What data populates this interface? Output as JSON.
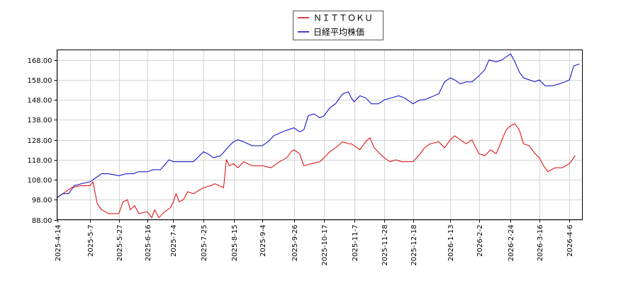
{
  "chart_data": {
    "type": "line",
    "title": "",
    "xlabel": "",
    "ylabel": "",
    "ylim": [
      88,
      173
    ],
    "y_ticks": [
      "88.00",
      "98.00",
      "108.00",
      "118.00",
      "128.00",
      "138.00",
      "148.00",
      "158.00",
      "168.00"
    ],
    "x_ticks": [
      "2025-4-14",
      "2025-5-7",
      "2025-5-27",
      "2025-6-16",
      "2025-7-4",
      "2025-7-25",
      "2025-8-15",
      "2025-9-4",
      "2025-9-26",
      "2025-10-17",
      "2025-11-7",
      "2025-11-28",
      "2025-12-18",
      "2026-1-13",
      "2026-2-2",
      "2026-2-24",
      "2026-3-16",
      "2026-4-6"
    ],
    "grid": true,
    "legend_position": "top-center",
    "series": [
      {
        "name": "ＮＩＴＴＯＫＵ",
        "color": "#dd0000",
        "points": [
          [
            "2025-4-14",
            99
          ],
          [
            "2025-4-18",
            101
          ],
          [
            "2025-4-24",
            104
          ],
          [
            "2025-4-30",
            105
          ],
          [
            "2025-5-7",
            105
          ],
          [
            "2025-5-9",
            107
          ],
          [
            "2025-5-12",
            96
          ],
          [
            "2025-5-15",
            93
          ],
          [
            "2025-5-20",
            91
          ],
          [
            "2025-5-27",
            91
          ],
          [
            "2025-5-30",
            97
          ],
          [
            "2025-6-2",
            98
          ],
          [
            "2025-6-4",
            93
          ],
          [
            "2025-6-7",
            95
          ],
          [
            "2025-6-10",
            91
          ],
          [
            "2025-6-16",
            92
          ],
          [
            "2025-6-19",
            89
          ],
          [
            "2025-6-21",
            93
          ],
          [
            "2025-6-24",
            89
          ],
          [
            "2025-6-28",
            92
          ],
          [
            "2025-7-2",
            94
          ],
          [
            "2025-7-4",
            97
          ],
          [
            "2025-7-6",
            101
          ],
          [
            "2025-7-8",
            97
          ],
          [
            "2025-7-11",
            98
          ],
          [
            "2025-7-14",
            102
          ],
          [
            "2025-7-18",
            101
          ],
          [
            "2025-7-25",
            104
          ],
          [
            "2025-7-30",
            105
          ],
          [
            "2025-8-2",
            106
          ],
          [
            "2025-8-8",
            104
          ],
          [
            "2025-8-10",
            118
          ],
          [
            "2025-8-12",
            115
          ],
          [
            "2025-8-15",
            116
          ],
          [
            "2025-8-18",
            114
          ],
          [
            "2025-8-22",
            117
          ],
          [
            "2025-8-28",
            115
          ],
          [
            "2025-9-4",
            115
          ],
          [
            "2025-9-10",
            114
          ],
          [
            "2025-9-16",
            117
          ],
          [
            "2025-9-21",
            119
          ],
          [
            "2025-9-24",
            122
          ],
          [
            "2025-9-26",
            123
          ],
          [
            "2025-9-30",
            121
          ],
          [
            "2025-10-3",
            115
          ],
          [
            "2025-10-8",
            116
          ],
          [
            "2025-10-14",
            117
          ],
          [
            "2025-10-17",
            119
          ],
          [
            "2025-10-21",
            122
          ],
          [
            "2025-10-25",
            124
          ],
          [
            "2025-10-30",
            127
          ],
          [
            "2025-11-3",
            126
          ],
          [
            "2025-11-5",
            126
          ],
          [
            "2025-11-7",
            125
          ],
          [
            "2025-11-11",
            123
          ],
          [
            "2025-11-15",
            127
          ],
          [
            "2025-11-18",
            129
          ],
          [
            "2025-11-21",
            124
          ],
          [
            "2025-11-25",
            121
          ],
          [
            "2025-11-28",
            119
          ],
          [
            "2025-12-2",
            117
          ],
          [
            "2025-12-6",
            118
          ],
          [
            "2025-12-10",
            117
          ],
          [
            "2025-12-15",
            117
          ],
          [
            "2025-12-18",
            117
          ],
          [
            "2025-12-23",
            121
          ],
          [
            "2025-12-26",
            124
          ],
          [
            "2025-12-30",
            126
          ],
          [
            "2026-1-5",
            127
          ],
          [
            "2026-1-9",
            124
          ],
          [
            "2026-1-13",
            128
          ],
          [
            "2026-1-16",
            130
          ],
          [
            "2026-1-20",
            128
          ],
          [
            "2026-1-24",
            126
          ],
          [
            "2026-1-28",
            128
          ],
          [
            "2026-2-2",
            121
          ],
          [
            "2026-2-6",
            120
          ],
          [
            "2026-2-10",
            123
          ],
          [
            "2026-2-14",
            121
          ],
          [
            "2026-2-18",
            128
          ],
          [
            "2026-2-21",
            133
          ],
          [
            "2026-2-24",
            135
          ],
          [
            "2026-2-27",
            136
          ],
          [
            "2026-3-2",
            133
          ],
          [
            "2026-3-5",
            126
          ],
          [
            "2026-3-9",
            125
          ],
          [
            "2026-3-13",
            121
          ],
          [
            "2026-3-16",
            119
          ],
          [
            "2026-3-19",
            115
          ],
          [
            "2026-3-22",
            112
          ],
          [
            "2026-3-27",
            114
          ],
          [
            "2026-4-1",
            114
          ],
          [
            "2026-4-6",
            116
          ],
          [
            "2026-4-10",
            120
          ]
        ]
      },
      {
        "name": "日経平均株価",
        "color": "#0000cc",
        "points": [
          [
            "2025-4-14",
            99
          ],
          [
            "2025-4-18",
            101
          ],
          [
            "2025-4-22",
            101
          ],
          [
            "2025-4-26",
            105
          ],
          [
            "2025-5-1",
            106
          ],
          [
            "2025-5-7",
            107
          ],
          [
            "2025-5-11",
            109
          ],
          [
            "2025-5-15",
            111
          ],
          [
            "2025-5-20",
            111
          ],
          [
            "2025-5-27",
            110
          ],
          [
            "2025-6-1",
            111
          ],
          [
            "2025-6-6",
            111
          ],
          [
            "2025-6-10",
            112
          ],
          [
            "2025-6-16",
            112
          ],
          [
            "2025-6-20",
            113
          ],
          [
            "2025-6-25",
            113
          ],
          [
            "2025-7-1",
            118
          ],
          [
            "2025-7-4",
            117
          ],
          [
            "2025-7-8",
            117
          ],
          [
            "2025-7-14",
            117
          ],
          [
            "2025-7-18",
            117
          ],
          [
            "2025-7-25",
            122
          ],
          [
            "2025-7-28",
            121
          ],
          [
            "2025-8-1",
            119
          ],
          [
            "2025-8-6",
            120
          ],
          [
            "2025-8-12",
            125
          ],
          [
            "2025-8-15",
            127
          ],
          [
            "2025-8-18",
            128
          ],
          [
            "2025-8-22",
            127
          ],
          [
            "2025-8-28",
            125
          ],
          [
            "2025-9-4",
            125
          ],
          [
            "2025-9-8",
            127
          ],
          [
            "2025-9-12",
            130
          ],
          [
            "2025-9-18",
            132
          ],
          [
            "2025-9-22",
            133
          ],
          [
            "2025-9-26",
            134
          ],
          [
            "2025-9-30",
            132
          ],
          [
            "2025-10-3",
            133
          ],
          [
            "2025-10-6",
            140
          ],
          [
            "2025-10-10",
            141
          ],
          [
            "2025-10-14",
            139
          ],
          [
            "2025-10-17",
            140
          ],
          [
            "2025-10-21",
            144
          ],
          [
            "2025-10-25",
            146
          ],
          [
            "2025-10-30",
            151
          ],
          [
            "2025-11-3",
            152
          ],
          [
            "2025-11-5",
            149
          ],
          [
            "2025-11-7",
            147
          ],
          [
            "2025-11-11",
            150
          ],
          [
            "2025-11-15",
            149
          ],
          [
            "2025-11-19",
            146
          ],
          [
            "2025-11-24",
            146
          ],
          [
            "2025-11-28",
            148
          ],
          [
            "2025-12-3",
            149
          ],
          [
            "2025-12-8",
            150
          ],
          [
            "2025-12-12",
            149
          ],
          [
            "2025-12-16",
            147
          ],
          [
            "2025-12-18",
            146
          ],
          [
            "2025-12-23",
            148
          ],
          [
            "2025-12-26",
            148
          ],
          [
            "2026-1-5",
            151
          ],
          [
            "2026-1-9",
            157
          ],
          [
            "2026-1-13",
            159
          ],
          [
            "2026-1-16",
            158
          ],
          [
            "2026-1-20",
            156
          ],
          [
            "2026-1-24",
            157
          ],
          [
            "2026-1-28",
            157
          ],
          [
            "2026-2-2",
            160
          ],
          [
            "2026-2-6",
            163
          ],
          [
            "2026-2-9",
            168
          ],
          [
            "2026-2-14",
            167
          ],
          [
            "2026-2-18",
            168
          ],
          [
            "2026-2-22",
            170
          ],
          [
            "2026-2-24",
            171
          ],
          [
            "2026-2-27",
            167
          ],
          [
            "2026-3-2",
            162
          ],
          [
            "2026-3-5",
            159
          ],
          [
            "2026-3-9",
            158
          ],
          [
            "2026-3-13",
            157
          ],
          [
            "2026-3-16",
            158
          ],
          [
            "2026-3-20",
            155
          ],
          [
            "2026-3-25",
            155
          ],
          [
            "2026-3-30",
            156
          ],
          [
            "2026-4-3",
            157
          ],
          [
            "2026-4-6",
            158
          ],
          [
            "2026-4-9",
            165
          ],
          [
            "2026-4-13",
            166
          ]
        ]
      }
    ]
  }
}
